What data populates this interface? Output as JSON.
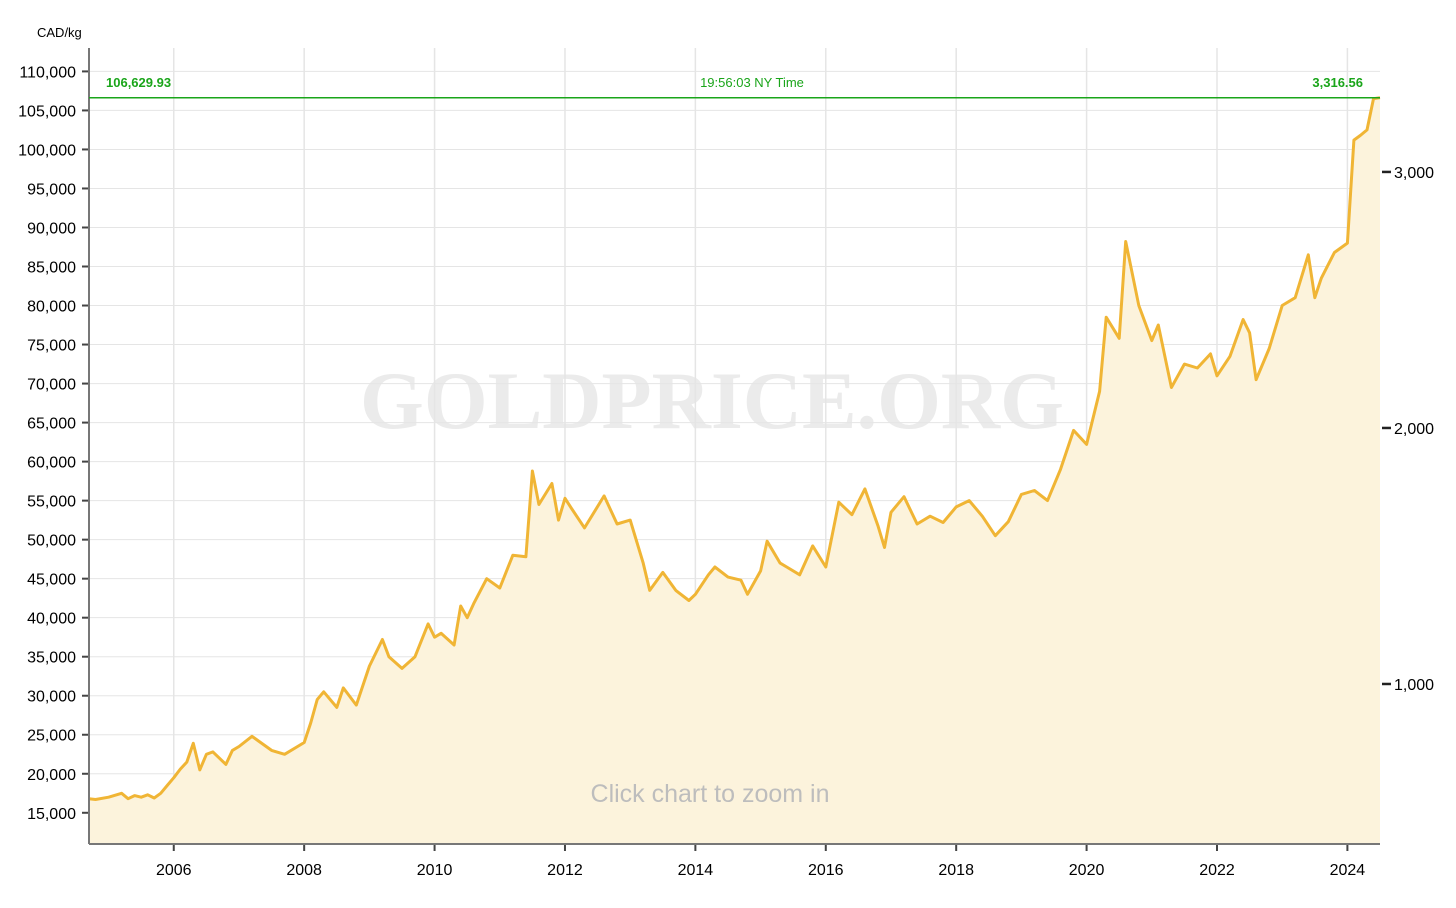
{
  "chart_data": {
    "type": "area",
    "y_unit_label": "CAD/kg",
    "watermark": "GOLDPRICE.ORG",
    "hint": "Click chart to zoom in",
    "current_value_left": "106,629.93",
    "current_time": "19:56:03 NY Time",
    "current_value_right": "3,316.56",
    "current_value": 106629.93,
    "ylim": [
      11000,
      113000
    ],
    "y_ticks": [
      15000,
      20000,
      25000,
      30000,
      35000,
      40000,
      45000,
      50000,
      55000,
      60000,
      65000,
      70000,
      75000,
      80000,
      85000,
      90000,
      95000,
      100000,
      105000,
      110000
    ],
    "y_tick_labels": [
      "15,000",
      "20,000",
      "25,000",
      "30,000",
      "35,000",
      "40,000",
      "45,000",
      "50,000",
      "55,000",
      "60,000",
      "65,000",
      "70,000",
      "75,000",
      "80,000",
      "85,000",
      "90,000",
      "95,000",
      "100,000",
      "105,000",
      "110,000"
    ],
    "right_ticks": [
      1000,
      2000,
      3000
    ],
    "right_tick_labels": [
      "1,000",
      "2,000",
      "3,000"
    ],
    "xlim": [
      2004.7,
      2024.5
    ],
    "x_ticks": [
      2006,
      2008,
      2010,
      2012,
      2014,
      2016,
      2018,
      2020,
      2022,
      2024
    ],
    "x_tick_labels": [
      "2006",
      "2008",
      "2010",
      "2012",
      "2014",
      "2016",
      "2018",
      "2020",
      "2022",
      "2024"
    ],
    "grid": true,
    "colors": {
      "line": "#f0b535",
      "fill": "#fcf3dc",
      "current": "#1aa51a",
      "grid": "#e5e5e5",
      "axis": "#555555"
    },
    "x": [
      2004.7,
      2004.8,
      2005.0,
      2005.2,
      2005.3,
      2005.4,
      2005.5,
      2005.6,
      2005.7,
      2005.8,
      2005.9,
      2006.0,
      2006.1,
      2006.2,
      2006.3,
      2006.4,
      2006.5,
      2006.6,
      2006.8,
      2006.9,
      2007.0,
      2007.2,
      2007.3,
      2007.5,
      2007.7,
      2007.9,
      2008.0,
      2008.1,
      2008.2,
      2008.3,
      2008.5,
      2008.6,
      2008.8,
      2009.0,
      2009.2,
      2009.3,
      2009.5,
      2009.7,
      2009.9,
      2010.0,
      2010.1,
      2010.3,
      2010.4,
      2010.5,
      2010.6,
      2010.8,
      2011.0,
      2011.2,
      2011.4,
      2011.5,
      2011.6,
      2011.8,
      2011.9,
      2012.0,
      2012.1,
      2012.3,
      2012.6,
      2012.8,
      2013.0,
      2013.2,
      2013.3,
      2013.5,
      2013.7,
      2013.9,
      2014.0,
      2014.2,
      2014.3,
      2014.5,
      2014.7,
      2014.8,
      2015.0,
      2015.1,
      2015.3,
      2015.4,
      2015.6,
      2015.8,
      2016.0,
      2016.2,
      2016.4,
      2016.6,
      2016.8,
      2016.9,
      2017.0,
      2017.2,
      2017.4,
      2017.6,
      2017.8,
      2018.0,
      2018.2,
      2018.4,
      2018.6,
      2018.8,
      2019.0,
      2019.2,
      2019.4,
      2019.6,
      2019.8,
      2020.0,
      2020.2,
      2020.3,
      2020.5,
      2020.6,
      2020.8,
      2021.0,
      2021.1,
      2021.3,
      2021.5,
      2021.7,
      2021.9,
      2022.0,
      2022.2,
      2022.4,
      2022.5,
      2022.6,
      2022.8,
      2023.0,
      2023.2,
      2023.4,
      2023.5,
      2023.6,
      2023.8,
      2024.0,
      2024.1,
      2024.2,
      2024.3,
      2024.4,
      2024.5
    ],
    "values": [
      16800,
      16700,
      17000,
      17500,
      16800,
      17200,
      17000,
      17300,
      16900,
      17500,
      18500,
      19500,
      20600,
      21500,
      23900,
      20500,
      22500,
      22800,
      21200,
      23000,
      23500,
      24800,
      24200,
      23000,
      22500,
      23500,
      24000,
      26500,
      29500,
      30500,
      28500,
      31000,
      28800,
      33800,
      37200,
      35000,
      33500,
      35000,
      39200,
      37500,
      38000,
      36500,
      41500,
      40000,
      41800,
      45000,
      43800,
      48000,
      47800,
      58800,
      54500,
      57200,
      52500,
      55300,
      54000,
      51500,
      55600,
      52000,
      52500,
      47000,
      43500,
      45800,
      43500,
      42200,
      43000,
      45500,
      46500,
      45200,
      44800,
      43000,
      46000,
      49800,
      47000,
      46500,
      45500,
      49200,
      46500,
      54800,
      53200,
      56500,
      51800,
      49000,
      53500,
      55500,
      52000,
      53000,
      52200,
      54200,
      55000,
      53000,
      50500,
      52300,
      55800,
      56300,
      55000,
      59000,
      64000,
      62200,
      69000,
      78500,
      75800,
      88200,
      80000,
      75500,
      77500,
      69500,
      72500,
      72000,
      73800,
      71000,
      73500,
      78200,
      76500,
      70500,
      74500,
      80000,
      81000,
      86500,
      81000,
      83500,
      86800,
      88000,
      101200,
      101800,
      102500,
      106500,
      106630
    ]
  }
}
